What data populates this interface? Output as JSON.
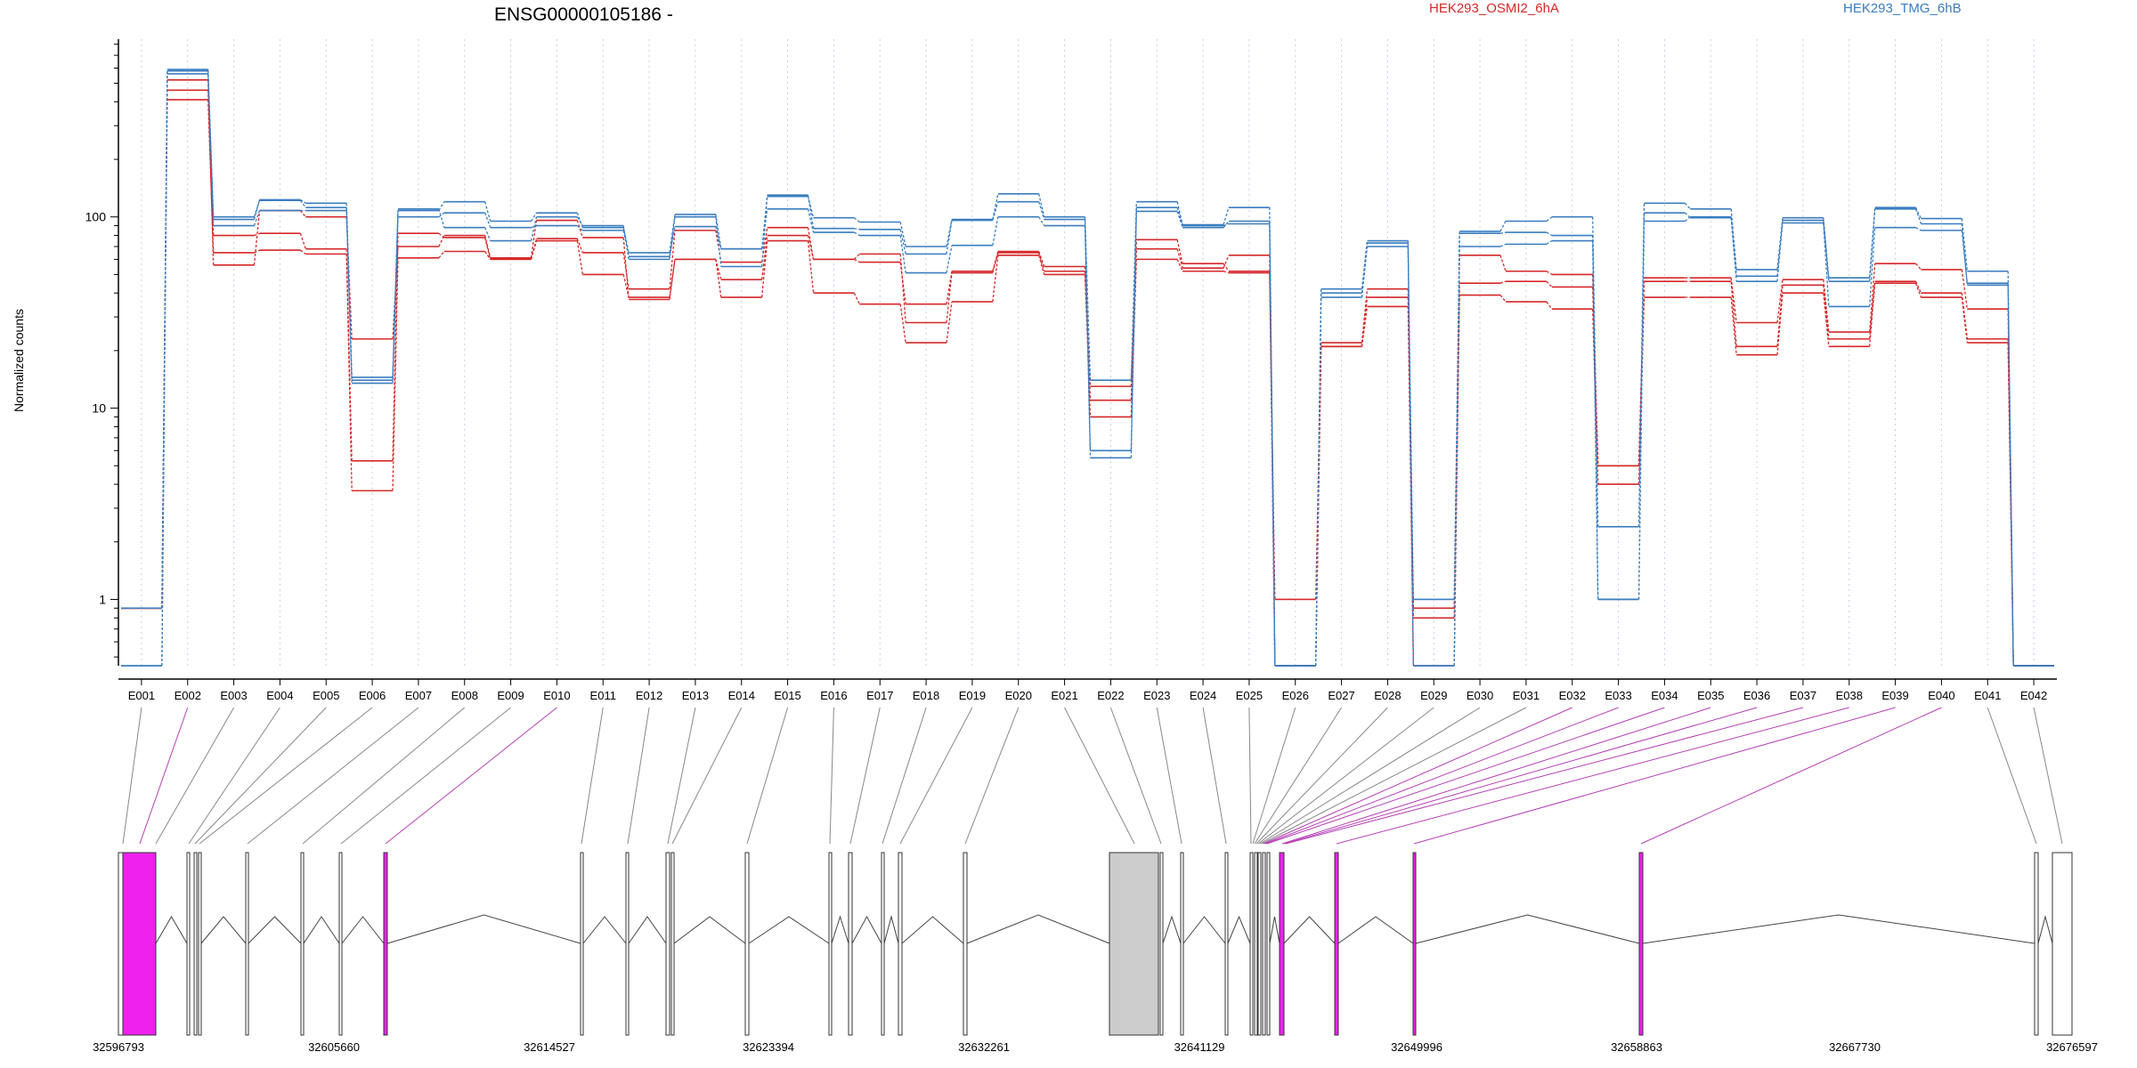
{
  "header": {
    "title": "ENSG00000105186 -",
    "legend": [
      {
        "label": "HEK293_OSMI2_6hA",
        "color": "#d62728"
      },
      {
        "label": "HEK293_TMG_6hB",
        "color": "#3a7dbf"
      }
    ]
  },
  "colors": {
    "treated": "#d62728",
    "control": "#3a7dbf",
    "highlight": "#ee22ee",
    "grey_exon": "#cccccc"
  },
  "chart_data": {
    "type": "line",
    "title": "ENSG00000105186 -",
    "xlabel": "",
    "ylabel": "Normalized counts",
    "yscale": "log",
    "ylim": [
      0.45,
      850
    ],
    "yticks": [
      1,
      10,
      100
    ],
    "ytick_labels": [
      "1",
      "10",
      "100"
    ],
    "grid": "vertical dotted",
    "legend_placement": "top-right",
    "categories": [
      "E001",
      "E002",
      "E003",
      "E004",
      "E005",
      "E006",
      "E007",
      "E008",
      "E009",
      "E010",
      "E011",
      "E012",
      "E013",
      "E014",
      "E015",
      "E016",
      "E017",
      "E018",
      "E019",
      "E020",
      "E021",
      "E022",
      "E023",
      "E024",
      "E025",
      "E026",
      "E027",
      "E028",
      "E029",
      "E030",
      "E031",
      "E032",
      "E033",
      "E034",
      "E035",
      "E036",
      "E037",
      "E038",
      "E039",
      "E040",
      "E041",
      "E042"
    ],
    "highlighted_exons": [
      "E002",
      "E010",
      "E032",
      "E033",
      "E034",
      "E035",
      "E036",
      "E037",
      "E038",
      "E039",
      "E040"
    ],
    "series": [
      {
        "name": "HEK293_OSMI2_6hA",
        "group": "treated",
        "values": [
          0.9,
          460,
          80,
          82,
          68,
          5.3,
          82,
          78,
          60,
          77,
          65,
          42,
          85,
          58,
          88,
          60,
          58,
          35,
          52,
          66,
          55,
          11,
          76,
          57,
          52,
          1.0,
          22,
          42,
          0.9,
          63,
          52,
          50,
          5,
          48,
          48,
          28,
          47,
          25,
          57,
          53,
          33,
          0.45
        ]
      },
      {
        "name": "HEK293_OSMI2_6hA",
        "group": "treated",
        "values": [
          0.9,
          410,
          65,
          67,
          64,
          3.7,
          61,
          66,
          60,
          75,
          50,
          38,
          60,
          38,
          75,
          40,
          35,
          22,
          36,
          63,
          50,
          9,
          60,
          52,
          51,
          0.45,
          21,
          34,
          0.45,
          39,
          36,
          33,
          4,
          38,
          38,
          19,
          40,
          21,
          45,
          38,
          22,
          0.45
        ]
      },
      {
        "name": "HEK293_OSMI2_6hA",
        "group": "treated",
        "values": [
          0.9,
          520,
          56,
          108,
          100,
          23,
          70,
          80,
          61,
          96,
          78,
          37,
          60,
          47,
          80,
          60,
          64,
          28,
          51,
          65,
          52,
          13,
          68,
          54,
          63,
          0.45,
          21,
          38,
          0.8,
          45,
          46,
          43,
          5,
          46,
          46,
          21,
          44,
          23,
          46,
          40,
          23,
          0.45
        ]
      },
      {
        "name": "HEK293_TMG_6hB",
        "group": "control",
        "values": [
          0.9,
          580,
          100,
          122,
          112,
          14,
          108,
          120,
          95,
          105,
          88,
          65,
          103,
          68,
          128,
          99,
          94,
          70,
          97,
          132,
          100,
          14,
          120,
          91,
          112,
          0.45,
          42,
          75,
          1.0,
          84,
          95,
          100,
          2.4,
          118,
          110,
          53,
          99,
          48,
          112,
          98,
          52,
          0.45
        ]
      },
      {
        "name": "HEK293_TMG_6hB",
        "group": "control",
        "values": [
          0.45,
          560,
          90,
          108,
          108,
          13.5,
          100,
          105,
          88,
          90,
          85,
          62,
          89,
          68,
          110,
          83,
          80,
          51,
          71,
          100,
          90,
          5.5,
          107,
          88,
          95,
          0.45,
          38,
          70,
          0.45,
          70,
          72,
          75,
          1.0,
          95,
          100,
          49,
          93,
          34,
          88,
          85,
          45,
          0.45
        ]
      },
      {
        "name": "HEK293_TMG_6hB",
        "group": "control",
        "values": [
          0.45,
          590,
          97,
          123,
          118,
          14.5,
          110,
          88,
          75,
          100,
          90,
          60,
          100,
          55,
          130,
          87,
          86,
          64,
          96,
          120,
          97,
          6,
          112,
          90,
          92,
          0.45,
          40,
          73,
          0.45,
          82,
          83,
          80,
          1.0,
          105,
          99,
          46,
          96,
          46,
          110,
          92,
          44,
          0.45
        ]
      }
    ],
    "gene_model": {
      "coordinate_ticks": [
        32596793,
        32605660,
        32614527,
        32623394,
        32632261,
        32641129,
        32649996,
        32658863,
        32667730,
        32676597
      ],
      "coordinate_range": [
        32596793,
        32676597
      ]
    }
  }
}
